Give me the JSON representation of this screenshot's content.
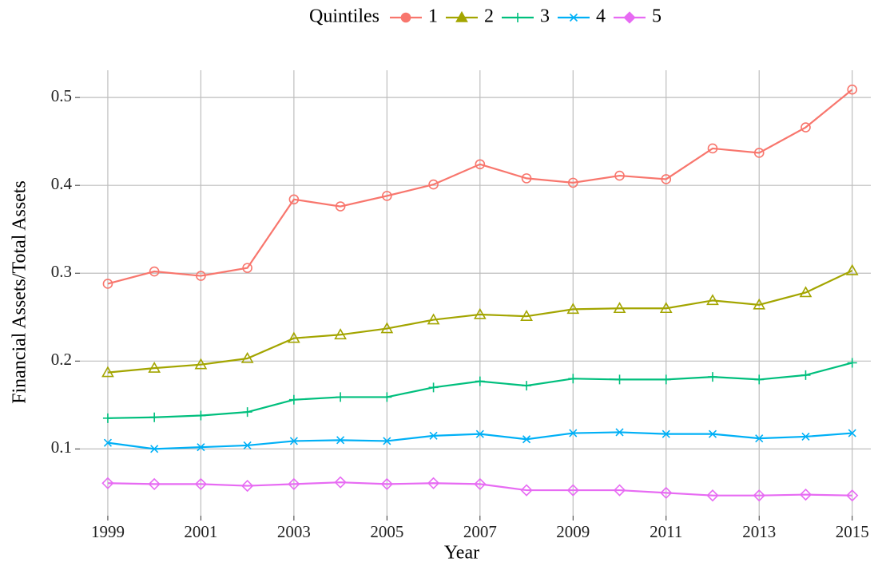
{
  "chart_data": {
    "type": "line",
    "x_label": "Year",
    "y_label": "Financial Assets/Total Assets",
    "legend_title": "Quintiles",
    "legend_position": "top",
    "x": [
      1999,
      2000,
      2001,
      2002,
      2003,
      2004,
      2005,
      2006,
      2007,
      2008,
      2009,
      2010,
      2011,
      2012,
      2013,
      2014,
      2015
    ],
    "xlim": [
      1998.4,
      2015.4
    ],
    "xticks": [
      1999,
      2001,
      2003,
      2005,
      2007,
      2009,
      2011,
      2013,
      2015
    ],
    "ylim": [
      0.024,
      0.531
    ],
    "yticks": [
      0.1,
      0.2,
      0.3,
      0.4,
      0.5
    ],
    "grid": true,
    "series": [
      {
        "name": "1",
        "color": "#F8766D",
        "marker": "circle",
        "values": [
          0.288,
          0.302,
          0.297,
          0.306,
          0.384,
          0.376,
          0.388,
          0.401,
          0.424,
          0.408,
          0.403,
          0.411,
          0.407,
          0.442,
          0.437,
          0.466,
          0.509
        ]
      },
      {
        "name": "2",
        "color": "#A3A500",
        "marker": "triangle",
        "values": [
          0.187,
          0.192,
          0.196,
          0.203,
          0.226,
          0.23,
          0.237,
          0.247,
          0.253,
          0.251,
          0.259,
          0.26,
          0.26,
          0.269,
          0.264,
          0.278,
          0.303
        ]
      },
      {
        "name": "3",
        "color": "#00BF7D",
        "marker": "plus",
        "values": [
          0.135,
          0.136,
          0.138,
          0.142,
          0.156,
          0.159,
          0.159,
          0.17,
          0.177,
          0.172,
          0.18,
          0.179,
          0.179,
          0.182,
          0.179,
          0.184,
          0.198
        ]
      },
      {
        "name": "4",
        "color": "#00B0F6",
        "marker": "cross",
        "values": [
          0.107,
          0.1,
          0.102,
          0.104,
          0.109,
          0.11,
          0.109,
          0.115,
          0.117,
          0.111,
          0.118,
          0.119,
          0.117,
          0.117,
          0.112,
          0.114,
          0.118
        ]
      },
      {
        "name": "5",
        "color": "#E76BF3",
        "marker": "diamond",
        "values": [
          0.061,
          0.06,
          0.06,
          0.058,
          0.06,
          0.062,
          0.06,
          0.061,
          0.06,
          0.053,
          0.053,
          0.053,
          0.05,
          0.047,
          0.047,
          0.048,
          0.047
        ]
      }
    ]
  }
}
